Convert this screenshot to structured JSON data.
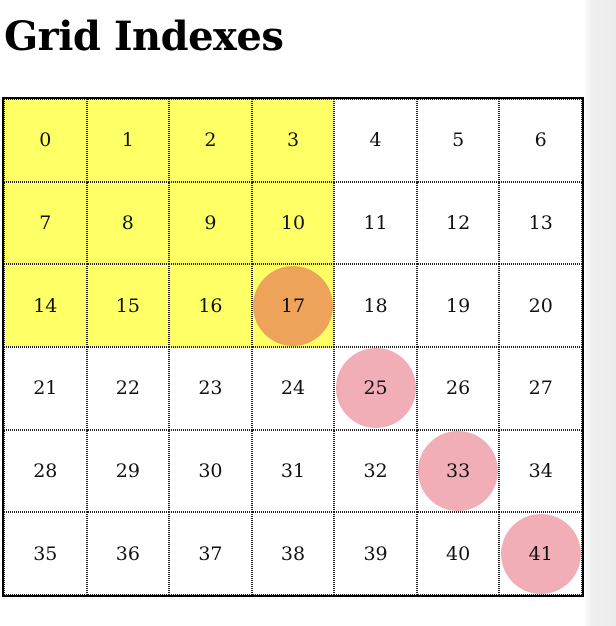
{
  "title": "Grid Indexes",
  "grid": {
    "columns": 7,
    "rows": 6,
    "cells": [
      {
        "label": "0",
        "highlight": true,
        "marker": null
      },
      {
        "label": "1",
        "highlight": true,
        "marker": null
      },
      {
        "label": "2",
        "highlight": true,
        "marker": null
      },
      {
        "label": "3",
        "highlight": true,
        "marker": null
      },
      {
        "label": "4",
        "highlight": false,
        "marker": null
      },
      {
        "label": "5",
        "highlight": false,
        "marker": null
      },
      {
        "label": "6",
        "highlight": false,
        "marker": null
      },
      {
        "label": "7",
        "highlight": true,
        "marker": null
      },
      {
        "label": "8",
        "highlight": true,
        "marker": null
      },
      {
        "label": "9",
        "highlight": true,
        "marker": null
      },
      {
        "label": "10",
        "highlight": true,
        "marker": null
      },
      {
        "label": "11",
        "highlight": false,
        "marker": null
      },
      {
        "label": "12",
        "highlight": false,
        "marker": null
      },
      {
        "label": "13",
        "highlight": false,
        "marker": null
      },
      {
        "label": "14",
        "highlight": true,
        "marker": null
      },
      {
        "label": "15",
        "highlight": true,
        "marker": null
      },
      {
        "label": "16",
        "highlight": true,
        "marker": null
      },
      {
        "label": "17",
        "highlight": true,
        "marker": "orange"
      },
      {
        "label": "18",
        "highlight": false,
        "marker": null
      },
      {
        "label": "19",
        "highlight": false,
        "marker": null
      },
      {
        "label": "20",
        "highlight": false,
        "marker": null
      },
      {
        "label": "21",
        "highlight": false,
        "marker": null
      },
      {
        "label": "22",
        "highlight": false,
        "marker": null
      },
      {
        "label": "23",
        "highlight": false,
        "marker": null
      },
      {
        "label": "24",
        "highlight": false,
        "marker": null
      },
      {
        "label": "25",
        "highlight": false,
        "marker": "pink"
      },
      {
        "label": "26",
        "highlight": false,
        "marker": null
      },
      {
        "label": "27",
        "highlight": false,
        "marker": null
      },
      {
        "label": "28",
        "highlight": false,
        "marker": null
      },
      {
        "label": "29",
        "highlight": false,
        "marker": null
      },
      {
        "label": "30",
        "highlight": false,
        "marker": null
      },
      {
        "label": "31",
        "highlight": false,
        "marker": null
      },
      {
        "label": "32",
        "highlight": false,
        "marker": null
      },
      {
        "label": "33",
        "highlight": false,
        "marker": "pink"
      },
      {
        "label": "34",
        "highlight": false,
        "marker": null
      },
      {
        "label": "35",
        "highlight": false,
        "marker": null
      },
      {
        "label": "36",
        "highlight": false,
        "marker": null
      },
      {
        "label": "37",
        "highlight": false,
        "marker": null
      },
      {
        "label": "38",
        "highlight": false,
        "marker": null
      },
      {
        "label": "39",
        "highlight": false,
        "marker": null
      },
      {
        "label": "40",
        "highlight": false,
        "marker": null
      },
      {
        "label": "41",
        "highlight": false,
        "marker": "pink"
      }
    ]
  },
  "colors": {
    "highlight": "#ffff66",
    "marker_orange": "#ec9f5a",
    "marker_pink": "#f0aab2",
    "grid_line": "#000000",
    "background": "#ffffff"
  }
}
